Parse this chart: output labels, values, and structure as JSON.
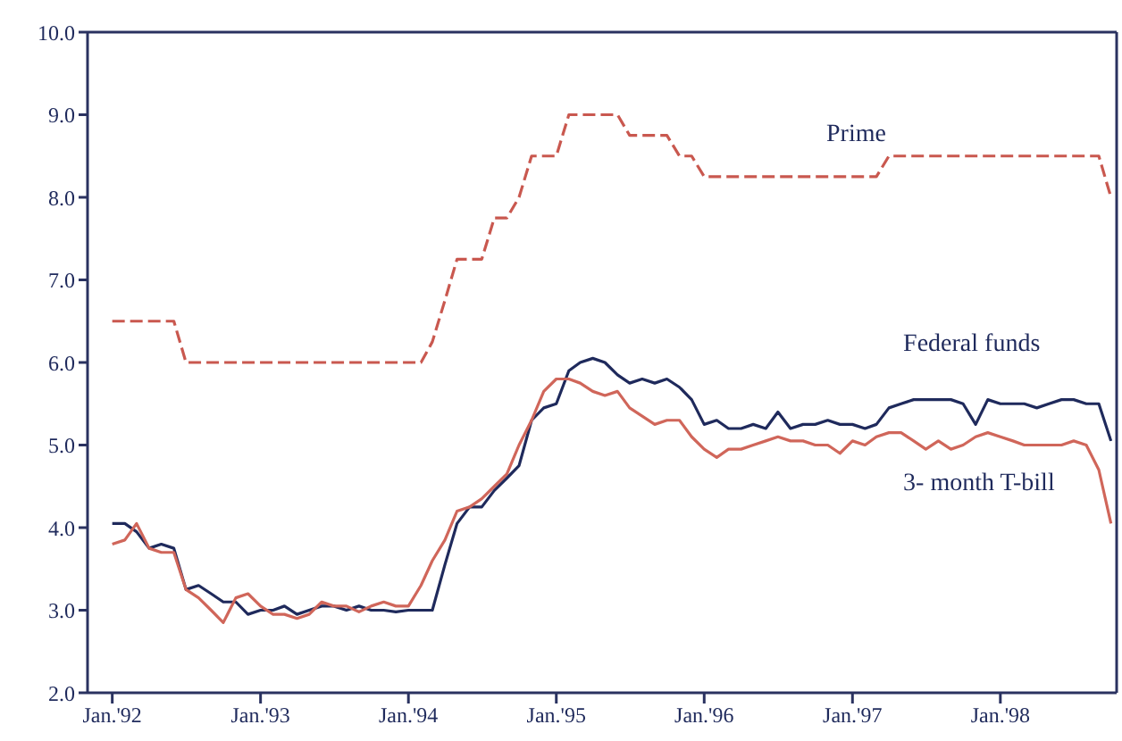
{
  "chart_data": {
    "type": "line",
    "xlim": [
      "1991-11-01",
      "1998-10-15"
    ],
    "ylim": [
      2,
      10
    ],
    "xticks": [
      {
        "value": "1992-01",
        "label": "Jan.'92"
      },
      {
        "value": "1993-01",
        "label": "Jan.'93"
      },
      {
        "value": "1994-01",
        "label": "Jan.'94"
      },
      {
        "value": "1995-01",
        "label": "Jan.'95"
      },
      {
        "value": "1996-01",
        "label": "Jan.'96"
      },
      {
        "value": "1997-01",
        "label": "Jan.'97"
      },
      {
        "value": "1998-01",
        "label": "Jan.'98"
      }
    ],
    "yticks": [
      {
        "value": 2,
        "label": "2.0"
      },
      {
        "value": 3,
        "label": "3.0"
      },
      {
        "value": 4,
        "label": "4.0"
      },
      {
        "value": 5,
        "label": "5.0"
      },
      {
        "value": 6,
        "label": "6.0"
      },
      {
        "value": 7,
        "label": "7.0"
      },
      {
        "value": 8,
        "label": "8.0"
      },
      {
        "value": 9,
        "label": "9.0"
      },
      {
        "value": 10,
        "label": "10.0"
      }
    ],
    "grid": false,
    "legend": false,
    "marker": "none",
    "x": [
      "1992-01",
      "1992-02",
      "1992-03",
      "1992-04",
      "1992-05",
      "1992-06",
      "1992-07",
      "1992-08",
      "1992-09",
      "1992-10",
      "1992-11",
      "1992-12",
      "1993-01",
      "1993-02",
      "1993-03",
      "1993-04",
      "1993-05",
      "1993-06",
      "1993-07",
      "1993-08",
      "1993-09",
      "1993-10",
      "1993-11",
      "1993-12",
      "1994-01",
      "1994-02",
      "1994-03",
      "1994-04",
      "1994-05",
      "1994-06",
      "1994-07",
      "1994-08",
      "1994-09",
      "1994-10",
      "1994-11",
      "1994-12",
      "1995-01",
      "1995-02",
      "1995-03",
      "1995-04",
      "1995-05",
      "1995-06",
      "1995-07",
      "1995-08",
      "1995-09",
      "1995-10",
      "1995-11",
      "1995-12",
      "1996-01",
      "1996-02",
      "1996-03",
      "1996-04",
      "1996-05",
      "1996-06",
      "1996-07",
      "1996-08",
      "1996-09",
      "1996-10",
      "1996-11",
      "1996-12",
      "1997-01",
      "1997-02",
      "1997-03",
      "1997-04",
      "1997-05",
      "1997-06",
      "1997-07",
      "1997-08",
      "1997-09",
      "1997-10",
      "1997-11",
      "1997-12",
      "1998-01",
      "1998-02",
      "1998-03",
      "1998-04",
      "1998-05",
      "1998-06",
      "1998-07",
      "1998-08",
      "1998-09",
      "1998-10"
    ],
    "series": [
      {
        "name": "Prime",
        "color": "#c9584f",
        "line_style": "dashed",
        "x": [
          "1992-01",
          "1992-06",
          "1992-07",
          "1994-02",
          "1994-03",
          "1994-04",
          "1994-05",
          "1994-07",
          "1994-08",
          "1994-09",
          "1994-10",
          "1994-11",
          "1995-01",
          "1995-02",
          "1995-06",
          "1995-07",
          "1995-10",
          "1995-11",
          "1995-12",
          "1996-01",
          "1997-03",
          "1997-04",
          "1998-09",
          "1998-10"
        ],
        "values": [
          6.5,
          6.5,
          6,
          6,
          6.25,
          6.75,
          7.25,
          7.25,
          7.75,
          7.75,
          8,
          8.5,
          8.5,
          9,
          9,
          8.75,
          8.75,
          8.5,
          8.5,
          8.25,
          8.25,
          8.5,
          8.5,
          8
        ]
      },
      {
        "name": "Federal funds",
        "color": "#1f2a5c",
        "line_style": "solid",
        "values": [
          4.05,
          4.05,
          3.95,
          3.75,
          3.8,
          3.75,
          3.25,
          3.3,
          3.2,
          3.1,
          3.1,
          2.95,
          3,
          3,
          3.05,
          2.95,
          3,
          3.05,
          3.05,
          3,
          3.05,
          3,
          3,
          2.98,
          3,
          3,
          3,
          3.55,
          4.05,
          4.25,
          4.25,
          4.45,
          4.6,
          4.75,
          5.3,
          5.45,
          5.5,
          5.9,
          6,
          6.05,
          6,
          5.85,
          5.75,
          5.8,
          5.75,
          5.8,
          5.7,
          5.55,
          5.25,
          5.3,
          5.2,
          5.2,
          5.25,
          5.2,
          5.4,
          5.2,
          5.25,
          5.25,
          5.3,
          5.25,
          5.25,
          5.2,
          5.25,
          5.45,
          5.5,
          5.55,
          5.55,
          5.55,
          5.55,
          5.5,
          5.25,
          5.55,
          5.5,
          5.5,
          5.5,
          5.45,
          5.5,
          5.55,
          5.55,
          5.5,
          5.5,
          5.05
        ]
      },
      {
        "name": "3- month T-bill",
        "color": "#d0665a",
        "line_style": "solid",
        "values": [
          3.8,
          3.85,
          4.05,
          3.75,
          3.7,
          3.7,
          3.25,
          3.15,
          3,
          2.85,
          3.15,
          3.2,
          3.05,
          2.95,
          2.95,
          2.9,
          2.95,
          3.1,
          3.05,
          3.05,
          2.98,
          3.05,
          3.1,
          3.05,
          3.05,
          3.3,
          3.6,
          3.85,
          4.2,
          4.25,
          4.35,
          4.5,
          4.65,
          5,
          5.3,
          5.65,
          5.8,
          5.8,
          5.75,
          5.65,
          5.6,
          5.65,
          5.45,
          5.35,
          5.25,
          5.3,
          5.3,
          5.1,
          4.95,
          4.85,
          4.95,
          4.95,
          5,
          5.05,
          5.1,
          5.05,
          5.05,
          5,
          5,
          4.9,
          5.05,
          5,
          5.1,
          5.15,
          5.15,
          5.05,
          4.95,
          5.05,
          4.95,
          5,
          5.1,
          5.15,
          5.1,
          5.05,
          5,
          5,
          5,
          5,
          5.05,
          5,
          4.7,
          4.05
        ]
      }
    ]
  }
}
